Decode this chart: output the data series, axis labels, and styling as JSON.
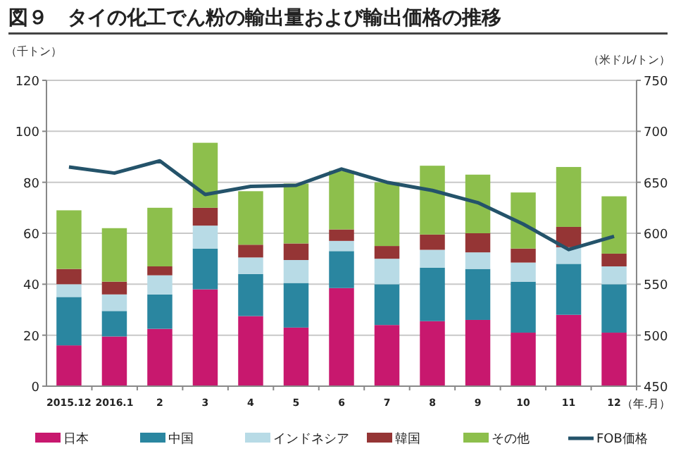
{
  "chart_data": {
    "type": "bar",
    "title": "図９　タイの化工でん粉の輸出量および輸出価格の推移",
    "ylabel": "（千トン）",
    "y2label": "（米ドル/トン）",
    "xlabel": "（年.月）",
    "categories": [
      "2015.12",
      "2016.1",
      "2",
      "3",
      "4",
      "5",
      "6",
      "7",
      "8",
      "9",
      "10",
      "11",
      "12"
    ],
    "stacked": true,
    "ylim": [
      0,
      120
    ],
    "yticks": [
      0,
      20,
      40,
      60,
      80,
      100,
      120
    ],
    "y2lim": [
      450,
      750
    ],
    "y2ticks": [
      450,
      500,
      550,
      600,
      650,
      700,
      750
    ],
    "grid": "y",
    "legend": "bottom",
    "series": [
      {
        "name": "日本",
        "color": "#c8186e",
        "values": [
          16,
          19.5,
          22.5,
          38,
          27.5,
          23,
          38.5,
          24,
          25.5,
          26,
          21,
          28,
          21
        ]
      },
      {
        "name": "中国",
        "color": "#2a86a0",
        "values": [
          19,
          10,
          13.5,
          16,
          16.5,
          17.5,
          14.5,
          16,
          21,
          20,
          20,
          20,
          19
        ]
      },
      {
        "name": "インドネシア",
        "color": "#b8dbe6",
        "values": [
          5,
          6.5,
          7.5,
          9,
          6.5,
          9,
          4,
          10,
          7,
          6.5,
          7.5,
          6.5,
          7
        ]
      },
      {
        "name": "韓国",
        "color": "#953535",
        "values": [
          6,
          5,
          3.5,
          7,
          5,
          6.5,
          4.5,
          5,
          6,
          7.5,
          5.5,
          8,
          5
        ]
      },
      {
        "name": "その他",
        "color": "#8dbf4c",
        "values": [
          23,
          21,
          23,
          25.5,
          21,
          23.5,
          23,
          25,
          27,
          23,
          22,
          23.5,
          22.5
        ]
      },
      {
        "name": "FOB価格",
        "type": "line",
        "axis": "y2",
        "color": "#24536a",
        "marker": "none",
        "line_style": "solid",
        "values": [
          665,
          659,
          671,
          638,
          646,
          647,
          663,
          650,
          642,
          630,
          609,
          584,
          597
        ]
      }
    ]
  }
}
